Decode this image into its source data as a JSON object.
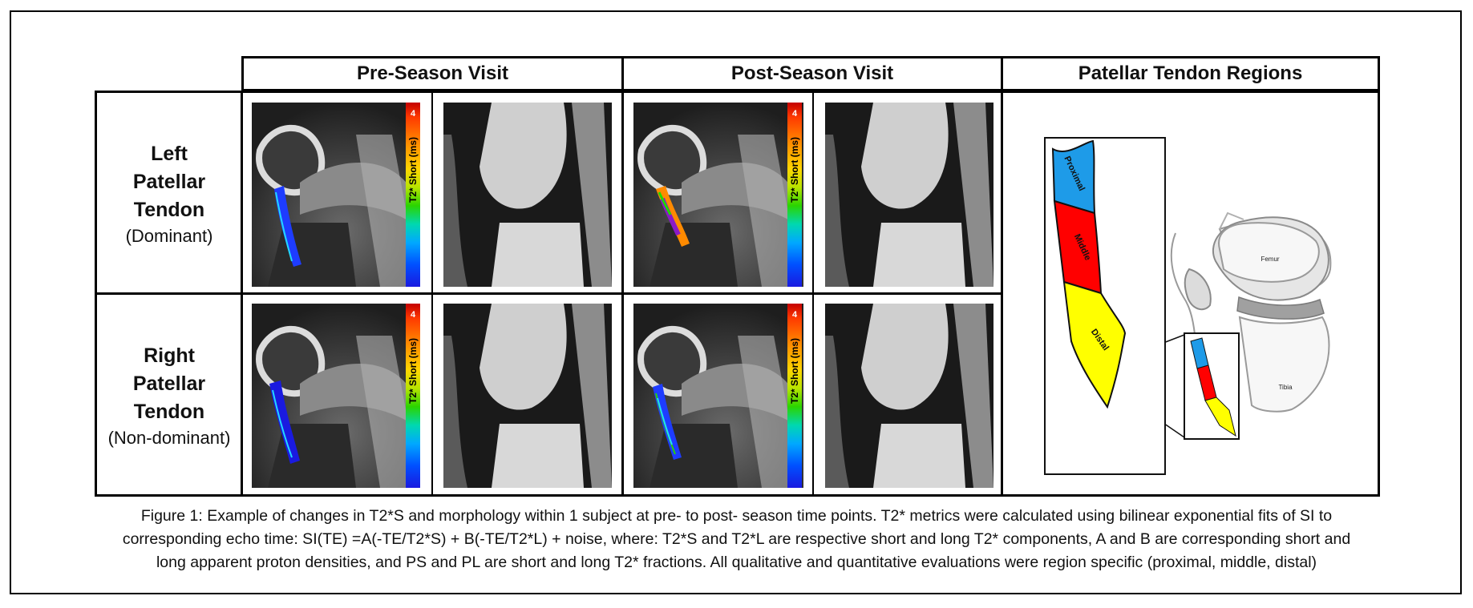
{
  "headers": {
    "pre": "Pre-Season Visit",
    "post": "Post-Season Visit",
    "regions": "Patellar Tendon Regions"
  },
  "rows": [
    {
      "line1": "Left",
      "line2": "Patellar",
      "line3": "Tendon",
      "qualifier": "(Dominant)"
    },
    {
      "line1": "Right",
      "line2": "Patellar",
      "line3": "Tendon",
      "qualifier": "(Non-dominant)"
    }
  ],
  "colorbar": {
    "max_label": "4",
    "label": "T2* Short (ms)"
  },
  "diagram": {
    "zoom_labels": {
      "proximal": "Proximal",
      "middle": "Middle",
      "distal": "Distal"
    },
    "bone_labels": {
      "femur": "Femur",
      "tibia": "Tibia"
    },
    "colors": {
      "proximal": "#1e9be8",
      "middle": "#ff0000",
      "distal": "#ffff00"
    }
  },
  "caption": {
    "line1": "Figure 1: Example of changes in T2*S and morphology within 1 subject at pre- to post- season time points. T2* metrics were calculated using bilinear exponential fits of SI to",
    "line2": "corresponding echo time: SI(TE) =A(-TE/T2*S) + B(-TE/T2*L) + noise, where: T2*S and T2*L are respective short and long T2* components, A and B are corresponding short and",
    "line3": "long apparent proton densities, and PS and PL are short and long T2* fractions. All qualitative and quantitative evaluations were region specific (proximal, middle, distal)"
  }
}
